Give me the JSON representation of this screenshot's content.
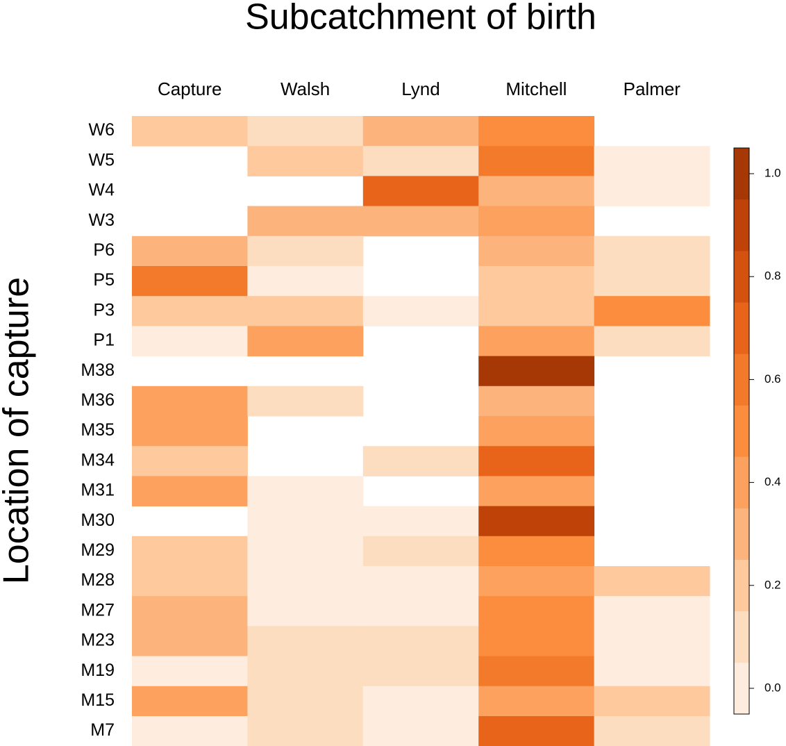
{
  "chart_data": {
    "type": "heatmap",
    "title": "Subcatchment of birth",
    "ylabel": "Location of capture",
    "x_categories": [
      "Capture",
      "Walsh",
      "Lynd",
      "Mitchell",
      "Palmer"
    ],
    "y_categories": [
      "W6",
      "W5",
      "W4",
      "W3",
      "P6",
      "P5",
      "P3",
      "P1",
      "M38",
      "M36",
      "M35",
      "M34",
      "M31",
      "M30",
      "M29",
      "M28",
      "M27",
      "M23",
      "M19",
      "M15",
      "M7"
    ],
    "values": [
      [
        0.2,
        0.1,
        0.3,
        0.5,
        null
      ],
      [
        null,
        0.2,
        0.1,
        0.6,
        0.0
      ],
      [
        null,
        null,
        0.7,
        0.3,
        0.0
      ],
      [
        null,
        0.3,
        0.3,
        0.4,
        null
      ],
      [
        0.3,
        0.1,
        null,
        0.3,
        0.1
      ],
      [
        0.6,
        0.0,
        null,
        0.2,
        0.1
      ],
      [
        0.2,
        0.2,
        0.0,
        0.2,
        0.5
      ],
      [
        0.0,
        0.4,
        null,
        0.4,
        0.1
      ],
      [
        null,
        null,
        null,
        1.0,
        null
      ],
      [
        0.4,
        0.1,
        null,
        0.3,
        null
      ],
      [
        0.4,
        null,
        null,
        0.4,
        null
      ],
      [
        0.2,
        null,
        0.1,
        0.7,
        null
      ],
      [
        0.4,
        0.0,
        null,
        0.4,
        null
      ],
      [
        null,
        0.0,
        0.0,
        0.9,
        null
      ],
      [
        0.2,
        0.0,
        0.1,
        0.5,
        null
      ],
      [
        0.2,
        0.0,
        0.0,
        0.4,
        0.2
      ],
      [
        0.3,
        0.0,
        0.0,
        0.5,
        0.0
      ],
      [
        0.3,
        0.1,
        0.1,
        0.5,
        0.0
      ],
      [
        0.0,
        0.1,
        0.1,
        0.6,
        0.0
      ],
      [
        0.4,
        0.1,
        0.0,
        0.4,
        0.2
      ],
      [
        0.0,
        0.1,
        0.0,
        0.7,
        0.1
      ]
    ],
    "zlim": [
      -0.05,
      1.05
    ],
    "levels": [
      -0.05,
      0.05,
      0.15,
      0.25,
      0.35,
      0.45,
      0.55,
      0.65,
      0.75,
      0.85,
      0.95,
      1.05
    ],
    "colors": [
      "#feeddf",
      "#fdddc0",
      "#fdc99d",
      "#fdb47c",
      "#fda15e",
      "#fc8d3f",
      "#f47a2b",
      "#e8641a",
      "#d4520f",
      "#bf4208",
      "#a63805"
    ],
    "zticks": [
      {
        "value": 0,
        "label": "0.0"
      },
      0.2,
      0.4,
      0.6,
      0.8,
      {
        "value": 1,
        "label": "1.0"
      }
    ]
  }
}
